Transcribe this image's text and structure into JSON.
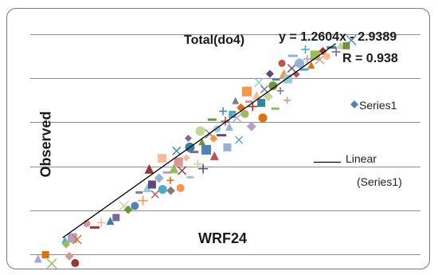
{
  "chart_data": {
    "type": "scatter",
    "title": "Total(do4)",
    "xlabel": "WRF24",
    "ylabel": "Observed",
    "xlim": [
      0,
      100
    ],
    "ylim": [
      0,
      100
    ],
    "grid": true,
    "trendline": {
      "equation": "y = 1.2604x - 2.9389",
      "r_label": "R = 0.938",
      "slope": 1.2604,
      "intercept": -2.9389,
      "x_range": [
        8.3,
        78.3
      ]
    },
    "legend": {
      "position": "right",
      "series_label": "Series1",
      "trend_label_line1": "Linear",
      "trend_label_line2": "(Series1)"
    },
    "series": [
      {
        "name": "Series1",
        "points": [
          [
            8.9,
            6.5
          ],
          [
            10.8,
            7.4
          ],
          [
            12.0,
            6.7
          ],
          [
            9.2,
            4.5
          ],
          [
            14.5,
            14.0
          ],
          [
            16.5,
            12.2
          ],
          [
            18.2,
            14.4
          ],
          [
            20.5,
            15.2
          ],
          [
            22.0,
            16.7
          ],
          [
            24.0,
            22.0
          ],
          [
            25.1,
            20.3
          ],
          [
            26.8,
            22.0
          ],
          [
            27.9,
            28.1
          ],
          [
            28.9,
            24.4
          ],
          [
            30.0,
            30.2
          ],
          [
            31.2,
            31.7
          ],
          [
            32.0,
            27.2
          ],
          [
            33.0,
            34.6
          ],
          [
            33.9,
            29.5
          ],
          [
            35.0,
            37.2
          ],
          [
            35.9,
            33.6
          ],
          [
            36.8,
            39.0
          ],
          [
            38.0,
            42.0
          ],
          [
            38.9,
            38.0
          ],
          [
            40.0,
            43.8
          ],
          [
            40.9,
            48.6
          ],
          [
            42.0,
            46.5
          ],
          [
            42.9,
            41.0
          ],
          [
            44.0,
            51.2
          ],
          [
            45.1,
            47.5
          ],
          [
            46.0,
            54.7
          ],
          [
            47.0,
            52.6
          ],
          [
            47.9,
            57.0
          ],
          [
            49.0,
            54.1
          ],
          [
            50.0,
            60.5
          ],
          [
            51.0,
            58.0
          ],
          [
            51.8,
            63.6
          ],
          [
            53.0,
            62.0
          ],
          [
            54.0,
            66.6
          ],
          [
            55.0,
            63.8
          ],
          [
            56.0,
            69.4
          ],
          [
            57.0,
            67.2
          ],
          [
            58.0,
            72.3
          ],
          [
            59.2,
            68.8
          ],
          [
            60.0,
            75.0
          ],
          [
            61.0,
            71.7
          ],
          [
            62.2,
            76.6
          ],
          [
            63.0,
            79.5
          ],
          [
            64.1,
            74.3
          ],
          [
            65.0,
            82.0
          ],
          [
            66.0,
            79.7
          ],
          [
            67.0,
            84.5
          ],
          [
            68.2,
            81.8
          ],
          [
            69.0,
            86.8
          ],
          [
            70.2,
            84.0
          ],
          [
            71.0,
            88.8
          ],
          [
            72.0,
            86.0
          ],
          [
            73.0,
            90.4
          ],
          [
            74.2,
            88.5
          ],
          [
            75.0,
            92.4
          ],
          [
            76.0,
            90.0
          ],
          [
            77.2,
            94.0
          ],
          [
            78.4,
            92.0
          ],
          [
            79.5,
            95.0
          ],
          [
            81.0,
            94.8
          ],
          [
            82.3,
            97.3
          ],
          [
            36.0,
            28.9
          ],
          [
            38.5,
            30.1
          ],
          [
            41.0,
            35.0
          ],
          [
            44.3,
            38.9
          ],
          [
            47.2,
            44.8
          ],
          [
            50.5,
            48.6
          ],
          [
            53.5,
            52.0
          ],
          [
            56.7,
            58.1
          ],
          [
            59.6,
            62.0
          ],
          [
            62.8,
            66.2
          ],
          [
            65.8,
            70.0
          ],
          [
            30.5,
            38.8
          ],
          [
            33.8,
            43.6
          ],
          [
            37.5,
            47.0
          ],
          [
            40.5,
            52.7
          ],
          [
            43.6,
            56.0
          ],
          [
            46.6,
            61.2
          ],
          [
            49.4,
            65.0
          ],
          [
            52.6,
            69.9
          ],
          [
            55.5,
            74.0
          ],
          [
            58.6,
            78.1
          ],
          [
            61.4,
            82.0
          ],
          [
            64.5,
            86.8
          ],
          [
            67.3,
            90.2
          ],
          [
            70.5,
            93.1
          ],
          [
            2.0,
            -2.0
          ],
          [
            3.9,
            -0.2
          ],
          [
            5.5,
            -4.2
          ],
          [
            10.0,
            -0.9
          ],
          [
            11.5,
            -4.0
          ]
        ]
      }
    ]
  },
  "colors": {
    "frame": "#777777",
    "gridline": "#8c8c8c",
    "trendline": "#000000",
    "marker_palette": [
      "#4bacc6",
      "#f79646",
      "#8064a2",
      "#9bbb59",
      "#c0504d",
      "#4f81bd",
      "#f9b99a",
      "#b3a2c7",
      "#93cddd",
      "#c3d69b",
      "#d99694",
      "#95b3d7",
      "#7f7f7f",
      "#31859b",
      "#e46c0a",
      "#5f497a",
      "#76923c",
      "#953735"
    ]
  },
  "marker_shapes": [
    "square",
    "circle",
    "triangle",
    "diamond",
    "cross",
    "x",
    "dash"
  ]
}
